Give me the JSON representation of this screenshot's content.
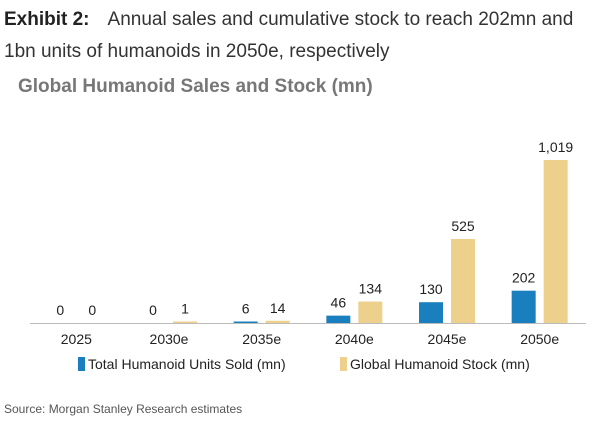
{
  "header": {
    "exhibit_label": "Exhibit 2:",
    "description": "Annual sales and cumulative stock to reach 202mn and 1bn units of humanoids in 2050e, respectively"
  },
  "footer": {
    "source": "Source: Morgan Stanley Research estimates"
  },
  "colors": {
    "sales": "#1a7fbf",
    "stock": "#ecd08c",
    "axis": "#bbbbbb"
  },
  "chart_data": {
    "type": "bar",
    "title": "Global Humanoid Sales and Stock (mn)",
    "xlabel": "",
    "ylabel": "",
    "categories": [
      "2025",
      "2030e",
      "2035e",
      "2040e",
      "2045e",
      "2050e"
    ],
    "series": [
      {
        "name": "Total Humanoid Units Sold (mn)",
        "values": [
          0,
          0,
          6,
          46,
          130,
          202
        ],
        "labels": [
          "0",
          "0",
          "6",
          "46",
          "130",
          "202"
        ]
      },
      {
        "name": "Global Humanoid Stock (mn)",
        "values": [
          0,
          1,
          14,
          134,
          525,
          1019
        ],
        "labels": [
          "0",
          "1",
          "14",
          "134",
          "525",
          "1,019"
        ]
      }
    ],
    "ylim": [
      0,
      1019
    ],
    "grid": false,
    "legend_position": "bottom"
  }
}
